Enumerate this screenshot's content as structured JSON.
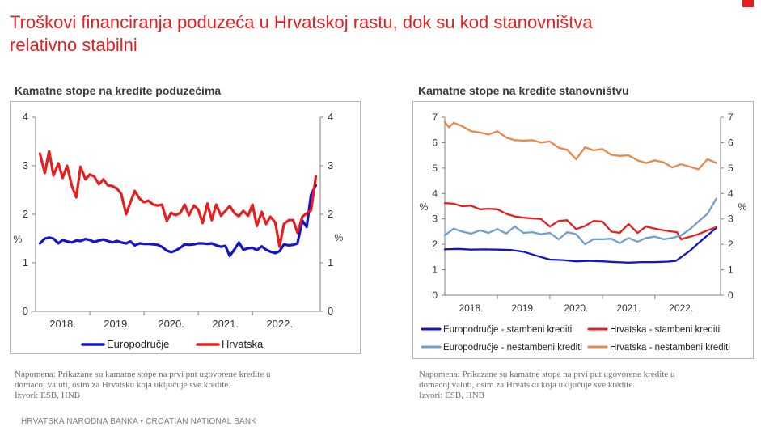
{
  "header": {
    "title_line1": "Troškovi financiranja poduzeća u Hrvatskoj rastu, dok su kod stanovništva",
    "title_line2": "relativno stabilni"
  },
  "footer": {
    "text": "HRVATSKA NARODNA BANKA • CROATIAN NATIONAL BANK"
  },
  "colors": {
    "title": "#e41f1f",
    "dark_blue": "#1414c8",
    "red": "#e41f1f",
    "light_blue": "#6f9fd2",
    "orange": "#e8884a"
  },
  "notes": {
    "left": {
      "line1": "Napomena: Prikazane su kamatne stope na prvi put ugovorene kredite u",
      "line2": "domaćoj valuti, osim za Hrvatsku koja uključuje sve kredite.",
      "line3": "Izvori: ESB, HNB"
    },
    "right": {
      "line1": "Napomena: Prikazane su kamatne stope na prvi put ugovorene kredite u",
      "line2": "domaćoj valuti, osim za Hrvatsku koja uključuje sve kredite.",
      "line3": "Izvori: ESB, HNB"
    }
  },
  "chart_data": [
    {
      "type": "line",
      "title": "Kamatne stope na kredite poduzećima",
      "ylabel_left": "%",
      "ylabel_right": "%",
      "ylim": [
        0,
        4
      ],
      "yticks": [
        0,
        1,
        2,
        3,
        4
      ],
      "xlim": [
        2017.5,
        2022.75
      ],
      "xticks": [
        2018,
        2019,
        2020,
        2021,
        2022
      ],
      "xtick_labels": [
        "2018.",
        "2019.",
        "2020.",
        "2021.",
        "2022."
      ],
      "grid": false,
      "legend_position": "bottom",
      "series": [
        {
          "name": "Europodručje",
          "color": "#1414c8",
          "x": [
            2017.58,
            2017.67,
            2017.75,
            2017.83,
            2017.92,
            2018.0,
            2018.08,
            2018.17,
            2018.25,
            2018.33,
            2018.42,
            2018.5,
            2018.58,
            2018.67,
            2018.75,
            2018.83,
            2018.92,
            2019.0,
            2019.08,
            2019.17,
            2019.25,
            2019.33,
            2019.42,
            2019.5,
            2019.58,
            2019.67,
            2019.75,
            2019.83,
            2019.92,
            2020.0,
            2020.08,
            2020.17,
            2020.25,
            2020.33,
            2020.42,
            2020.5,
            2020.58,
            2020.67,
            2020.75,
            2020.83,
            2020.92,
            2021.0,
            2021.08,
            2021.17,
            2021.25,
            2021.33,
            2021.42,
            2021.5,
            2021.58,
            2021.67,
            2021.75,
            2021.83,
            2021.92,
            2022.0,
            2022.08,
            2022.17,
            2022.25,
            2022.33,
            2022.42,
            2022.5,
            2022.58,
            2022.67
          ],
          "y": [
            1.4,
            1.5,
            1.52,
            1.5,
            1.4,
            1.47,
            1.44,
            1.42,
            1.46,
            1.45,
            1.49,
            1.47,
            1.43,
            1.46,
            1.48,
            1.45,
            1.42,
            1.45,
            1.42,
            1.4,
            1.44,
            1.36,
            1.4,
            1.39,
            1.39,
            1.38,
            1.37,
            1.33,
            1.25,
            1.22,
            1.25,
            1.31,
            1.38,
            1.37,
            1.38,
            1.4,
            1.4,
            1.39,
            1.4,
            1.36,
            1.33,
            1.35,
            1.14,
            1.28,
            1.42,
            1.27,
            1.3,
            1.31,
            1.26,
            1.34,
            1.27,
            1.23,
            1.2,
            1.24,
            1.38,
            1.36,
            1.37,
            1.4,
            1.87,
            1.74,
            2.4,
            2.6
          ]
        },
        {
          "name": "Hrvatska",
          "color": "#e41f1f",
          "x": [
            2017.58,
            2017.67,
            2017.75,
            2017.83,
            2017.92,
            2018.0,
            2018.08,
            2018.17,
            2018.25,
            2018.33,
            2018.42,
            2018.5,
            2018.58,
            2018.67,
            2018.75,
            2018.83,
            2018.92,
            2019.0,
            2019.08,
            2019.17,
            2019.25,
            2019.33,
            2019.42,
            2019.5,
            2019.58,
            2019.67,
            2019.75,
            2019.83,
            2019.92,
            2020.0,
            2020.08,
            2020.17,
            2020.25,
            2020.33,
            2020.42,
            2020.5,
            2020.58,
            2020.67,
            2020.75,
            2020.83,
            2020.92,
            2021.0,
            2021.08,
            2021.17,
            2021.25,
            2021.33,
            2021.42,
            2021.5,
            2021.58,
            2021.67,
            2021.75,
            2021.83,
            2021.92,
            2022.0,
            2022.08,
            2022.17,
            2022.25,
            2022.33,
            2022.42,
            2022.5,
            2022.58,
            2022.67
          ],
          "y": [
            3.25,
            2.85,
            3.3,
            2.8,
            3.05,
            2.75,
            3.0,
            2.58,
            2.35,
            2.98,
            2.72,
            2.82,
            2.78,
            2.62,
            2.72,
            2.6,
            2.58,
            2.53,
            2.42,
            2.0,
            2.25,
            2.48,
            2.32,
            2.25,
            2.28,
            2.2,
            2.18,
            2.2,
            1.86,
            2.03,
            1.98,
            2.03,
            2.2,
            1.98,
            2.18,
            2.1,
            1.82,
            2.22,
            1.88,
            2.2,
            1.97,
            2.07,
            2.17,
            2.02,
            1.96,
            2.07,
            1.97,
            2.2,
            1.76,
            2.05,
            1.8,
            1.95,
            1.83,
            1.33,
            1.8,
            1.88,
            1.88,
            1.62,
            1.95,
            2.02,
            2.08,
            2.78
          ]
        }
      ]
    },
    {
      "type": "line",
      "title": "Kamatne stope na kredite stanovništvu",
      "ylabel_left": "%",
      "ylabel_right": "%",
      "ylim": [
        0,
        7
      ],
      "yticks": [
        0,
        1,
        2,
        3,
        4,
        5,
        6,
        7
      ],
      "xlim": [
        2017.5,
        2022.75
      ],
      "xticks": [
        2018,
        2019,
        2020,
        2021,
        2022
      ],
      "xtick_labels": [
        "2018.",
        "2019.",
        "2020.",
        "2021.",
        "2022."
      ],
      "grid": false,
      "legend_position": "bottom",
      "series": [
        {
          "name": "Europodručje - stambeni krediti",
          "color": "#1414c8",
          "x": [
            2017.5,
            2017.75,
            2018.0,
            2018.25,
            2018.5,
            2018.75,
            2019.0,
            2019.25,
            2019.5,
            2019.75,
            2020.0,
            2020.25,
            2020.5,
            2020.75,
            2021.0,
            2021.25,
            2021.5,
            2021.75,
            2021.9,
            2022.0,
            2022.17,
            2022.33,
            2022.5,
            2022.67
          ],
          "y": [
            1.8,
            1.82,
            1.79,
            1.8,
            1.79,
            1.78,
            1.71,
            1.55,
            1.4,
            1.38,
            1.33,
            1.35,
            1.33,
            1.3,
            1.28,
            1.3,
            1.3,
            1.32,
            1.35,
            1.5,
            1.75,
            2.05,
            2.35,
            2.65
          ]
        },
        {
          "name": "Hrvatska - stambeni krediti",
          "color": "#e41f1f",
          "x": [
            2017.5,
            2017.67,
            2017.83,
            2018.0,
            2018.17,
            2018.33,
            2018.5,
            2018.67,
            2018.83,
            2019.0,
            2019.17,
            2019.33,
            2019.5,
            2019.67,
            2019.83,
            2020.0,
            2020.17,
            2020.33,
            2020.5,
            2020.67,
            2020.83,
            2021.0,
            2021.17,
            2021.33,
            2021.5,
            2021.67,
            2021.83,
            2021.92,
            2022.0,
            2022.17,
            2022.33,
            2022.5,
            2022.67
          ],
          "y": [
            3.62,
            3.6,
            3.5,
            3.52,
            3.38,
            3.4,
            3.38,
            3.2,
            3.1,
            3.05,
            3.02,
            3.0,
            2.7,
            2.92,
            2.95,
            2.6,
            2.72,
            2.92,
            2.9,
            2.5,
            2.45,
            2.8,
            2.45,
            2.7,
            2.62,
            2.55,
            2.5,
            2.48,
            2.2,
            2.3,
            2.4,
            2.55,
            2.68
          ]
        },
        {
          "name": "Europodručje - nestambeni krediti",
          "color": "#6f9fd2",
          "x": [
            2017.5,
            2017.67,
            2017.83,
            2018.0,
            2018.17,
            2018.33,
            2018.5,
            2018.67,
            2018.83,
            2019.0,
            2019.17,
            2019.33,
            2019.5,
            2019.67,
            2019.83,
            2020.0,
            2020.17,
            2020.33,
            2020.5,
            2020.67,
            2020.83,
            2021.0,
            2021.17,
            2021.33,
            2021.5,
            2021.67,
            2021.83,
            2022.0,
            2022.17,
            2022.33,
            2022.5,
            2022.67
          ],
          "y": [
            2.35,
            2.62,
            2.5,
            2.42,
            2.55,
            2.45,
            2.6,
            2.42,
            2.7,
            2.45,
            2.48,
            2.4,
            2.45,
            2.2,
            2.48,
            2.4,
            2.0,
            2.2,
            2.2,
            2.22,
            2.05,
            2.25,
            2.1,
            2.25,
            2.3,
            2.2,
            2.25,
            2.35,
            2.6,
            2.9,
            3.2,
            3.8
          ]
        },
        {
          "name": "Hrvatska - nestambeni krediti",
          "color": "#e8884a",
          "x": [
            2017.5,
            2017.58,
            2017.67,
            2017.83,
            2018.0,
            2018.17,
            2018.33,
            2018.5,
            2018.67,
            2018.83,
            2019.0,
            2019.17,
            2019.33,
            2019.5,
            2019.67,
            2019.83,
            2020.0,
            2020.17,
            2020.33,
            2020.5,
            2020.67,
            2020.83,
            2021.0,
            2021.17,
            2021.33,
            2021.5,
            2021.67,
            2021.83,
            2022.0,
            2022.17,
            2022.33,
            2022.5,
            2022.67
          ],
          "y": [
            6.82,
            6.6,
            6.78,
            6.65,
            6.45,
            6.4,
            6.32,
            6.45,
            6.2,
            6.1,
            6.08,
            6.1,
            6.0,
            6.05,
            5.8,
            5.72,
            5.35,
            5.82,
            5.7,
            5.75,
            5.52,
            5.48,
            5.5,
            5.3,
            5.2,
            5.3,
            5.22,
            5.02,
            5.15,
            5.05,
            4.95,
            5.35,
            5.2
          ]
        }
      ]
    }
  ]
}
